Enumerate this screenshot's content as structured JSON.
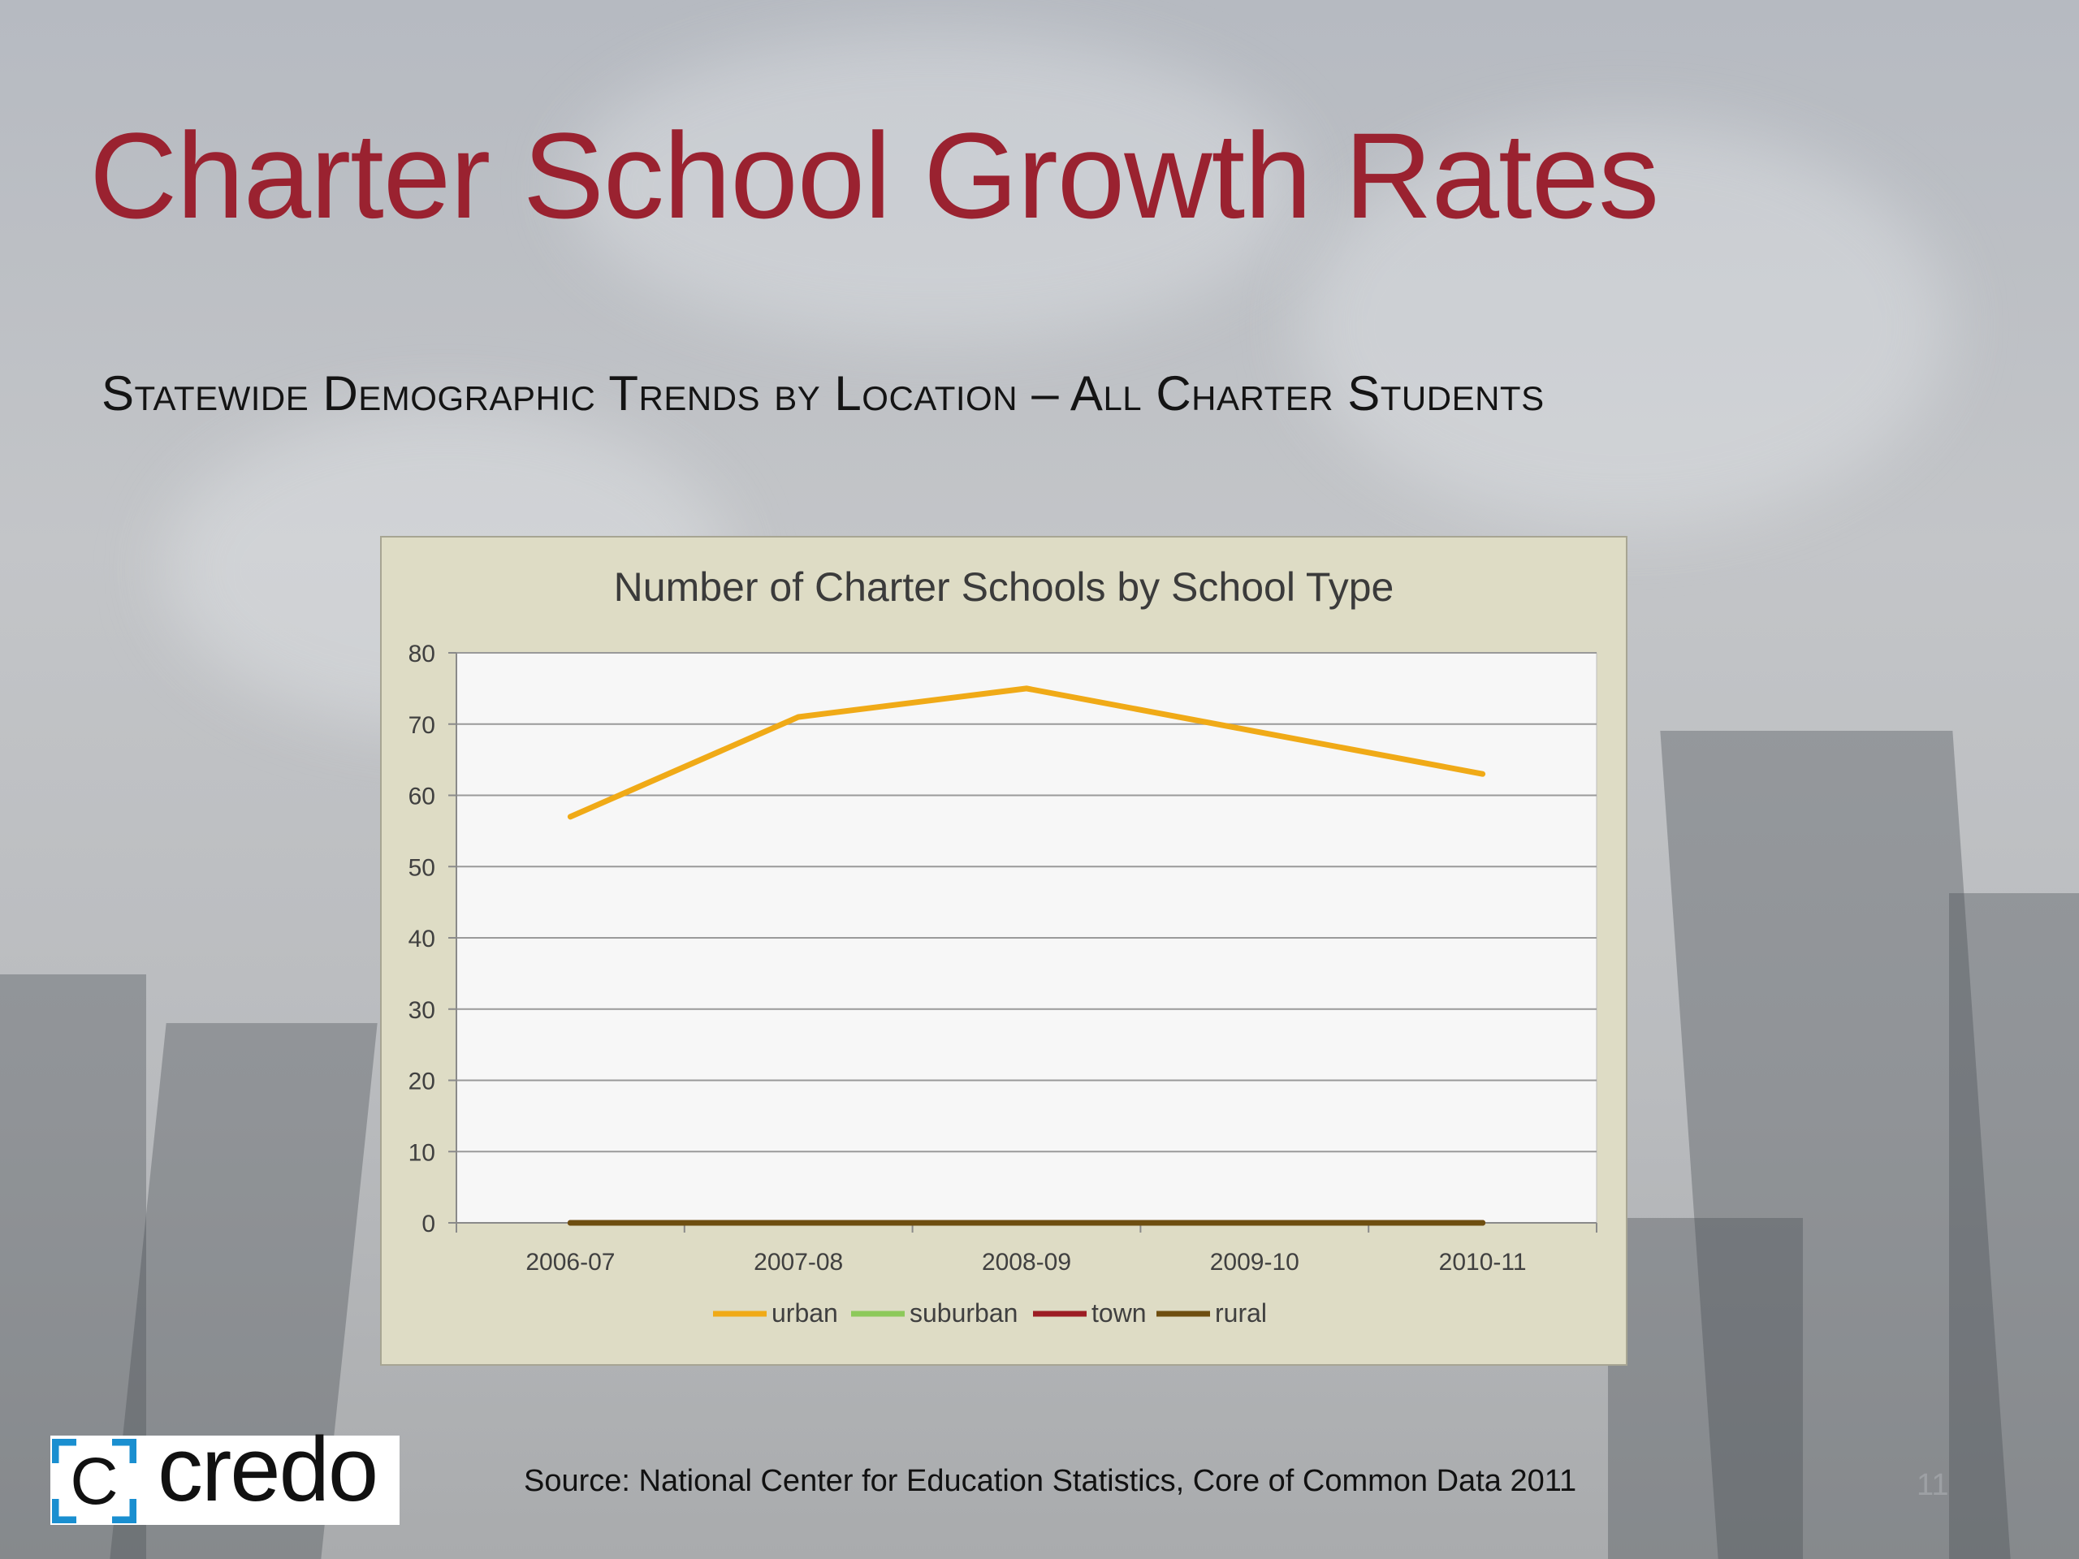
{
  "slide": {
    "title": "Charter School Growth Rates",
    "subtitle": "Statewide Demographic Trends by Location – All Charter Students",
    "source": "Source:  National Center for Education Statistics, Core of Common Data 2011",
    "page_number": "11",
    "logo_text": "credo",
    "logo_mark": "C",
    "colors": {
      "title": "#9a2230",
      "chart_background": "#dedcc5",
      "plot_background": "#f7f7f7",
      "logo_accent": "#1a8fd0"
    }
  },
  "chart_data": {
    "type": "line",
    "title": "Number of Charter Schools by School Type",
    "xlabel": "",
    "ylabel": "",
    "categories": [
      "2006-07",
      "2007-08",
      "2008-09",
      "2009-10",
      "2010-11"
    ],
    "ylim": [
      0,
      80
    ],
    "yticks": [
      0,
      10,
      20,
      30,
      40,
      50,
      60,
      70,
      80
    ],
    "grid": true,
    "legend_position": "bottom",
    "series": [
      {
        "name": "urban",
        "color": "#f0aa17",
        "values": [
          57,
          71,
          75,
          69,
          63
        ]
      },
      {
        "name": "suburban",
        "color": "#8dc95a",
        "values": [
          0,
          0,
          0,
          0,
          0
        ]
      },
      {
        "name": "town",
        "color": "#9c1d24",
        "values": [
          0,
          0,
          0,
          0,
          0
        ]
      },
      {
        "name": "rural",
        "color": "#6e4e10",
        "values": [
          0,
          0,
          0,
          0,
          0
        ]
      }
    ]
  }
}
